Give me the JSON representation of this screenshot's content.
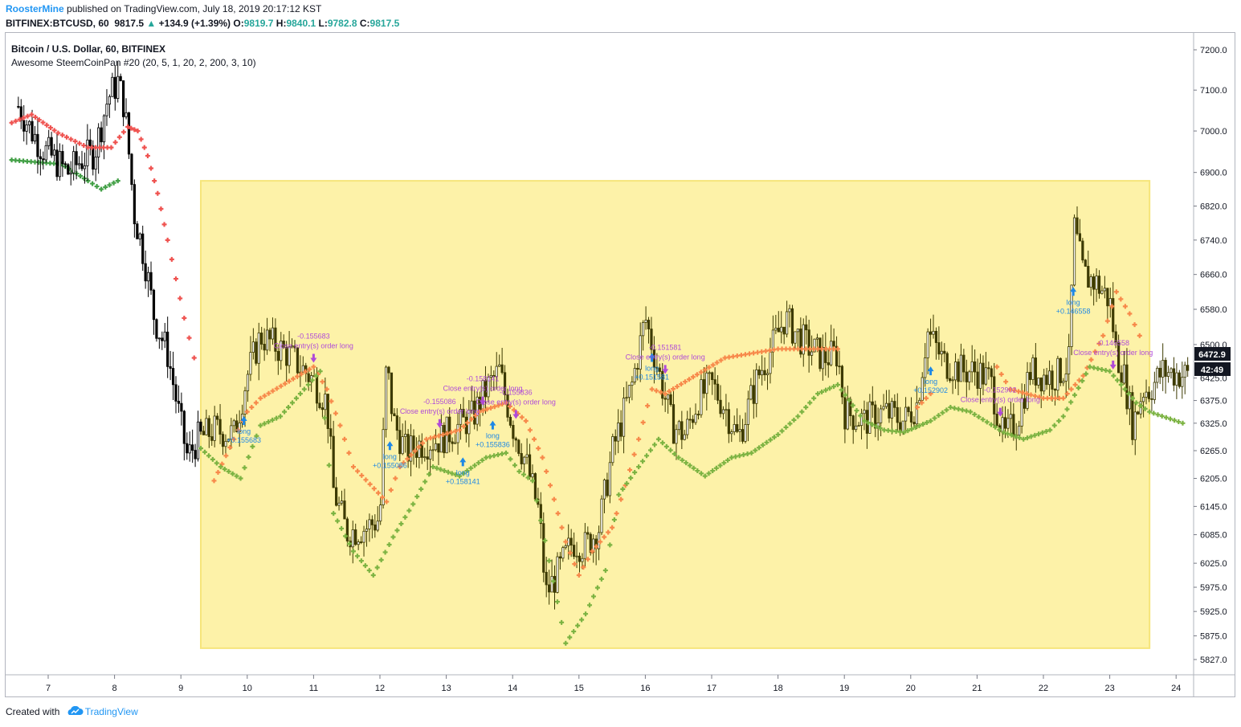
{
  "header": {
    "author": "RoosterMine",
    "published_text": "published on TradingView.com, July 18, 2019 20:17:12 KST",
    "symbol": "BITFINEX:BTCUSD, 60",
    "last": "9817.5",
    "change": "+134.9 (+1.39%)",
    "o_label": "O:",
    "o_value": "9819.7",
    "h_label": "H:",
    "h_value": "9840.1",
    "l_label": "L:",
    "l_value": "9782.8",
    "c_label": "C:",
    "c_value": "9817.5"
  },
  "footer": {
    "created_with": "Created with",
    "brand": "TradingView"
  },
  "colors": {
    "candle": "#3d3a00",
    "candle_pre": "#000000",
    "highlight": "#fdf2a8",
    "highlight_border": "#f6e57a",
    "sar_red": "#ef5350",
    "sar_orange": "#f7894a",
    "sar_green": "#7cb342",
    "sar_green_pre": "#43a047",
    "signal_blue": "#1e88e5",
    "signal_purple": "#b04bd8",
    "axis_text": "#131722"
  },
  "chart_data": {
    "type": "candlestick",
    "title": "Bitcoin / U.S. Dollar, 60, BITFINEX",
    "indicator": "Awesome SteemCoinPan #20 (20, 5, 1, 20, 2, 200, 3, 10)",
    "y_ticks": [
      5827.0,
      5875.0,
      5925.0,
      5975.0,
      6025.0,
      6085.0,
      6145.0,
      6205.0,
      6265.0,
      6325.0,
      6375.0,
      6425.0,
      6500.0,
      6580.0,
      6660.0,
      6740.0,
      6820.0,
      6900.0,
      7000.0,
      7100.0,
      7200.0
    ],
    "x_ticks": [
      "7",
      "8",
      "9",
      "10",
      "11",
      "12",
      "13",
      "14",
      "15",
      "16",
      "17",
      "18",
      "19",
      "20",
      "21",
      "22",
      "23",
      "24"
    ],
    "price_label": "6472.9",
    "countdown_label": "42:49",
    "scale": "log",
    "highlight_range": {
      "x_start_day": 9.3,
      "x_end_day": 23.6,
      "y_low": 5850,
      "y_high": 6880
    },
    "price_path": [
      [
        6.55,
        7060
      ],
      [
        6.75,
        7000
      ],
      [
        6.9,
        6960
      ],
      [
        7.1,
        6930
      ],
      [
        7.3,
        6900
      ],
      [
        7.5,
        6930
      ],
      [
        7.7,
        6950
      ],
      [
        7.9,
        7080
      ],
      [
        8.05,
        7120
      ],
      [
        8.15,
        7060
      ],
      [
        8.3,
        6800
      ],
      [
        8.45,
        6700
      ],
      [
        8.6,
        6560
      ],
      [
        8.8,
        6480
      ],
      [
        9.0,
        6320
      ],
      [
        9.1,
        6250
      ],
      [
        9.25,
        6290
      ],
      [
        9.5,
        6310
      ],
      [
        9.8,
        6300
      ],
      [
        10.0,
        6430
      ],
      [
        10.2,
        6520
      ],
      [
        10.4,
        6500
      ],
      [
        10.6,
        6480
      ],
      [
        10.8,
        6450
      ],
      [
        11.0,
        6420
      ],
      [
        11.2,
        6370
      ],
      [
        11.3,
        6180
      ],
      [
        11.5,
        6090
      ],
      [
        11.8,
        6100
      ],
      [
        12.0,
        6120
      ],
      [
        12.1,
        6460
      ],
      [
        12.2,
        6330
      ],
      [
        12.4,
        6260
      ],
      [
        12.6,
        6280
      ],
      [
        12.9,
        6290
      ],
      [
        13.1,
        6310
      ],
      [
        13.4,
        6340
      ],
      [
        13.6,
        6400
      ],
      [
        13.8,
        6440
      ],
      [
        14.0,
        6320
      ],
      [
        14.2,
        6240
      ],
      [
        14.4,
        6130
      ],
      [
        14.5,
        5960
      ],
      [
        14.7,
        6010
      ],
      [
        14.9,
        6070
      ],
      [
        15.1,
        6060
      ],
      [
        15.3,
        6100
      ],
      [
        15.5,
        6260
      ],
      [
        15.8,
        6410
      ],
      [
        16.0,
        6560
      ],
      [
        16.2,
        6440
      ],
      [
        16.4,
        6320
      ],
      [
        16.6,
        6300
      ],
      [
        16.8,
        6380
      ],
      [
        17.0,
        6410
      ],
      [
        17.2,
        6360
      ],
      [
        17.4,
        6290
      ],
      [
        17.7,
        6430
      ],
      [
        17.9,
        6490
      ],
      [
        18.1,
        6560
      ],
      [
        18.3,
        6520
      ],
      [
        18.5,
        6490
      ],
      [
        18.7,
        6470
      ],
      [
        18.9,
        6480
      ],
      [
        19.0,
        6350
      ],
      [
        19.3,
        6330
      ],
      [
        19.6,
        6350
      ],
      [
        19.9,
        6330
      ],
      [
        20.1,
        6370
      ],
      [
        20.25,
        6530
      ],
      [
        20.5,
        6460
      ],
      [
        20.8,
        6440
      ],
      [
        21.0,
        6440
      ],
      [
        21.2,
        6420
      ],
      [
        21.4,
        6290
      ],
      [
        21.6,
        6330
      ],
      [
        21.8,
        6440
      ],
      [
        22.0,
        6430
      ],
      [
        22.2,
        6430
      ],
      [
        22.4,
        6460
      ],
      [
        22.45,
        6780
      ],
      [
        22.6,
        6660
      ],
      [
        22.8,
        6640
      ],
      [
        23.0,
        6600
      ],
      [
        23.1,
        6480
      ],
      [
        23.2,
        6440
      ],
      [
        23.35,
        6320
      ],
      [
        23.5,
        6400
      ],
      [
        23.6,
        6400
      ],
      [
        23.8,
        6440
      ],
      [
        24.2,
        6430
      ]
    ],
    "sar_red": [
      [
        6.45,
        7020
      ],
      [
        6.75,
        7040
      ],
      [
        7.15,
        6995
      ],
      [
        7.6,
        6960
      ],
      [
        7.95,
        6960
      ],
      [
        8.2,
        7010
      ],
      [
        8.35,
        7000
      ],
      [
        8.5,
        6940
      ],
      [
        8.65,
        6850
      ],
      [
        8.8,
        6740
      ],
      [
        9.05,
        6560
      ],
      [
        9.2,
        6470
      ]
    ],
    "sar_orange": [
      [
        9.5,
        6200
      ],
      [
        9.8,
        6290
      ],
      [
        10.0,
        6350
      ],
      [
        10.2,
        6380
      ],
      [
        11.0,
        6450
      ],
      [
        11.2,
        6400
      ],
      [
        11.4,
        6320
      ],
      [
        11.6,
        6230
      ],
      [
        12.1,
        6155
      ],
      [
        12.3,
        6230
      ],
      [
        12.7,
        6290
      ],
      [
        13.2,
        6310
      ],
      [
        13.5,
        6350
      ],
      [
        13.9,
        6370
      ],
      [
        14.2,
        6330
      ],
      [
        14.45,
        6250
      ],
      [
        14.8,
        6070
      ],
      [
        15.0,
        6000
      ],
      [
        15.2,
        6050
      ],
      [
        15.5,
        6100
      ],
      [
        15.7,
        6190
      ],
      [
        15.9,
        6290
      ],
      [
        16.1,
        6400
      ],
      [
        16.3,
        6390
      ],
      [
        17.2,
        6470
      ],
      [
        18.0,
        6490
      ],
      [
        18.9,
        6490
      ],
      [
        20.1,
        6360
      ],
      [
        20.3,
        6390
      ],
      [
        21.3,
        6450
      ],
      [
        21.5,
        6400
      ],
      [
        22.0,
        6380
      ],
      [
        22.3,
        6380
      ],
      [
        22.6,
        6430
      ],
      [
        22.9,
        6520
      ],
      [
        23.1,
        6620
      ],
      [
        23.3,
        6570
      ],
      [
        23.45,
        6520
      ]
    ],
    "sar_green_pre": [
      [
        6.45,
        6930
      ],
      [
        6.8,
        6925
      ],
      [
        7.2,
        6920
      ],
      [
        7.6,
        6880
      ],
      [
        7.8,
        6860
      ],
      [
        8.05,
        6880
      ]
    ],
    "sar_green": [
      [
        9.3,
        6270
      ],
      [
        9.6,
        6230
      ],
      [
        9.9,
        6205
      ],
      [
        10.2,
        6320
      ],
      [
        10.5,
        6340
      ],
      [
        10.8,
        6390
      ],
      [
        11.1,
        6440
      ],
      [
        11.3,
        6130
      ],
      [
        11.6,
        6050
      ],
      [
        11.9,
        6000
      ],
      [
        12.2,
        6080
      ],
      [
        12.5,
        6150
      ],
      [
        12.8,
        6230
      ],
      [
        13.2,
        6210
      ],
      [
        13.6,
        6250
      ],
      [
        13.9,
        6260
      ],
      [
        14.1,
        6220
      ],
      [
        14.3,
        6200
      ],
      [
        14.8,
        5860
      ],
      [
        15.1,
        5920
      ],
      [
        15.4,
        6010
      ],
      [
        15.6,
        6170
      ],
      [
        16.2,
        6290
      ],
      [
        16.5,
        6250
      ],
      [
        16.9,
        6210
      ],
      [
        17.3,
        6250
      ],
      [
        17.6,
        6260
      ],
      [
        18.0,
        6300
      ],
      [
        18.3,
        6340
      ],
      [
        18.6,
        6390
      ],
      [
        18.9,
        6410
      ],
      [
        19.3,
        6330
      ],
      [
        19.6,
        6310
      ],
      [
        19.9,
        6305
      ],
      [
        20.3,
        6330
      ],
      [
        20.6,
        6360
      ],
      [
        20.9,
        6350
      ],
      [
        21.4,
        6305
      ],
      [
        21.7,
        6290
      ],
      [
        22.1,
        6310
      ],
      [
        22.3,
        6340
      ],
      [
        22.7,
        6450
      ],
      [
        23.0,
        6440
      ],
      [
        23.4,
        6370
      ],
      [
        23.6,
        6350
      ],
      [
        24.1,
        6325
      ]
    ],
    "signals_long": [
      {
        "day": 9.95,
        "price": 6330,
        "label": "long",
        "value": "+0.155683"
      },
      {
        "day": 12.15,
        "price": 6275,
        "label": "long",
        "value": "+0.155086"
      },
      {
        "day": 13.25,
        "price": 6240,
        "label": "long",
        "value": "+0.158141"
      },
      {
        "day": 13.7,
        "price": 6320,
        "label": "long",
        "value": "+0.155836"
      },
      {
        "day": 16.1,
        "price": 6470,
        "label": "long",
        "value": "+0.151581"
      },
      {
        "day": 20.3,
        "price": 6440,
        "label": "long",
        "value": "+0.152902"
      },
      {
        "day": 22.45,
        "price": 6620,
        "label": "long",
        "value": "+0.146558"
      }
    ],
    "signals_close": [
      {
        "day": 11.0,
        "price": 6470,
        "pnl": "-0.155683",
        "text": "Close entry(s) order long"
      },
      {
        "day": 12.9,
        "price": 6325,
        "pnl": "-0.155086",
        "text": "Close entry(s) order long"
      },
      {
        "day": 13.55,
        "price": 6375,
        "pnl": "-0.158141",
        "text": "Close entry(s) order long"
      },
      {
        "day": 14.05,
        "price": 6345,
        "pnl": "-0.155836",
        "text": "Close entry(s) order long"
      },
      {
        "day": 16.3,
        "price": 6445,
        "pnl": "-0.151581",
        "text": "Close entry(s) order long"
      },
      {
        "day": 21.35,
        "price": 6350,
        "pnl": "-0.152902",
        "text": "Close entry(s) order long"
      },
      {
        "day": 23.05,
        "price": 6455,
        "pnl": "-0.146558",
        "text": "Close entry(s) order long"
      }
    ],
    "grid": false,
    "legend": "top-left"
  }
}
